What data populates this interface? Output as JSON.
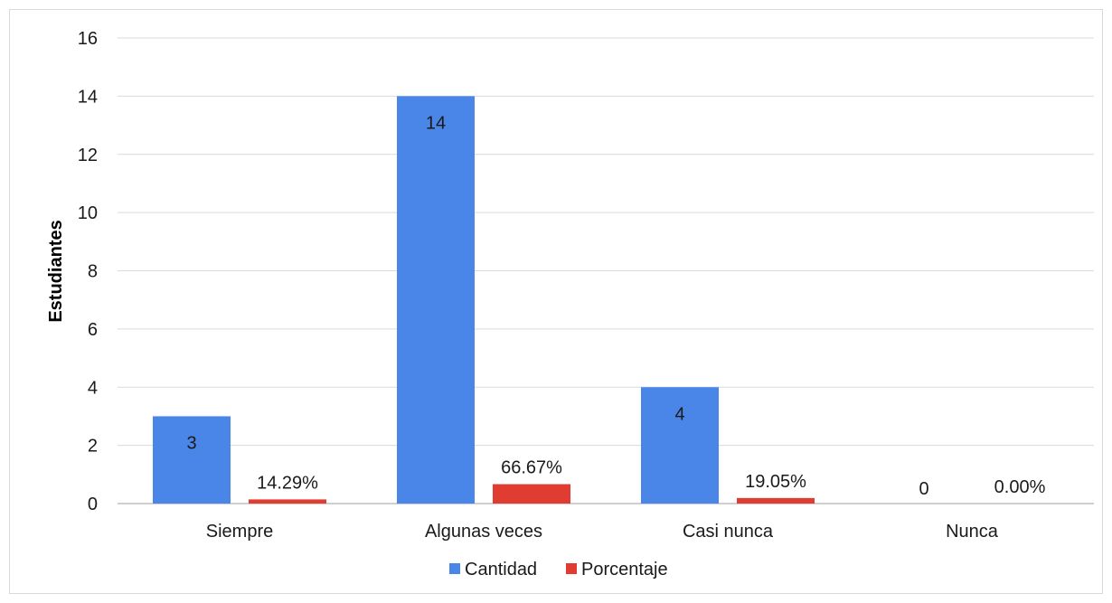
{
  "chart_data": {
    "type": "bar",
    "title": "",
    "xlabel": "",
    "ylabel": "Estudiantes",
    "ylim": [
      0,
      16
    ],
    "yticks": [
      0,
      2,
      4,
      6,
      8,
      10,
      12,
      14,
      16
    ],
    "categories": [
      "Siempre",
      "Algunas veces",
      "Casi nunca",
      "Nunca"
    ],
    "series": [
      {
        "name": "Cantidad",
        "color": "#4a86e8",
        "values": [
          3,
          14,
          4,
          0
        ],
        "labels": [
          "3",
          "14",
          "4",
          "0"
        ]
      },
      {
        "name": "Porcentaje",
        "color": "#e03c31",
        "values": [
          0.1429,
          0.6667,
          0.1905,
          0
        ],
        "labels": [
          "14.29%",
          "66.67%",
          "19.05%",
          "0.00%"
        ]
      }
    ],
    "grid": true,
    "legend_position": "bottom"
  }
}
